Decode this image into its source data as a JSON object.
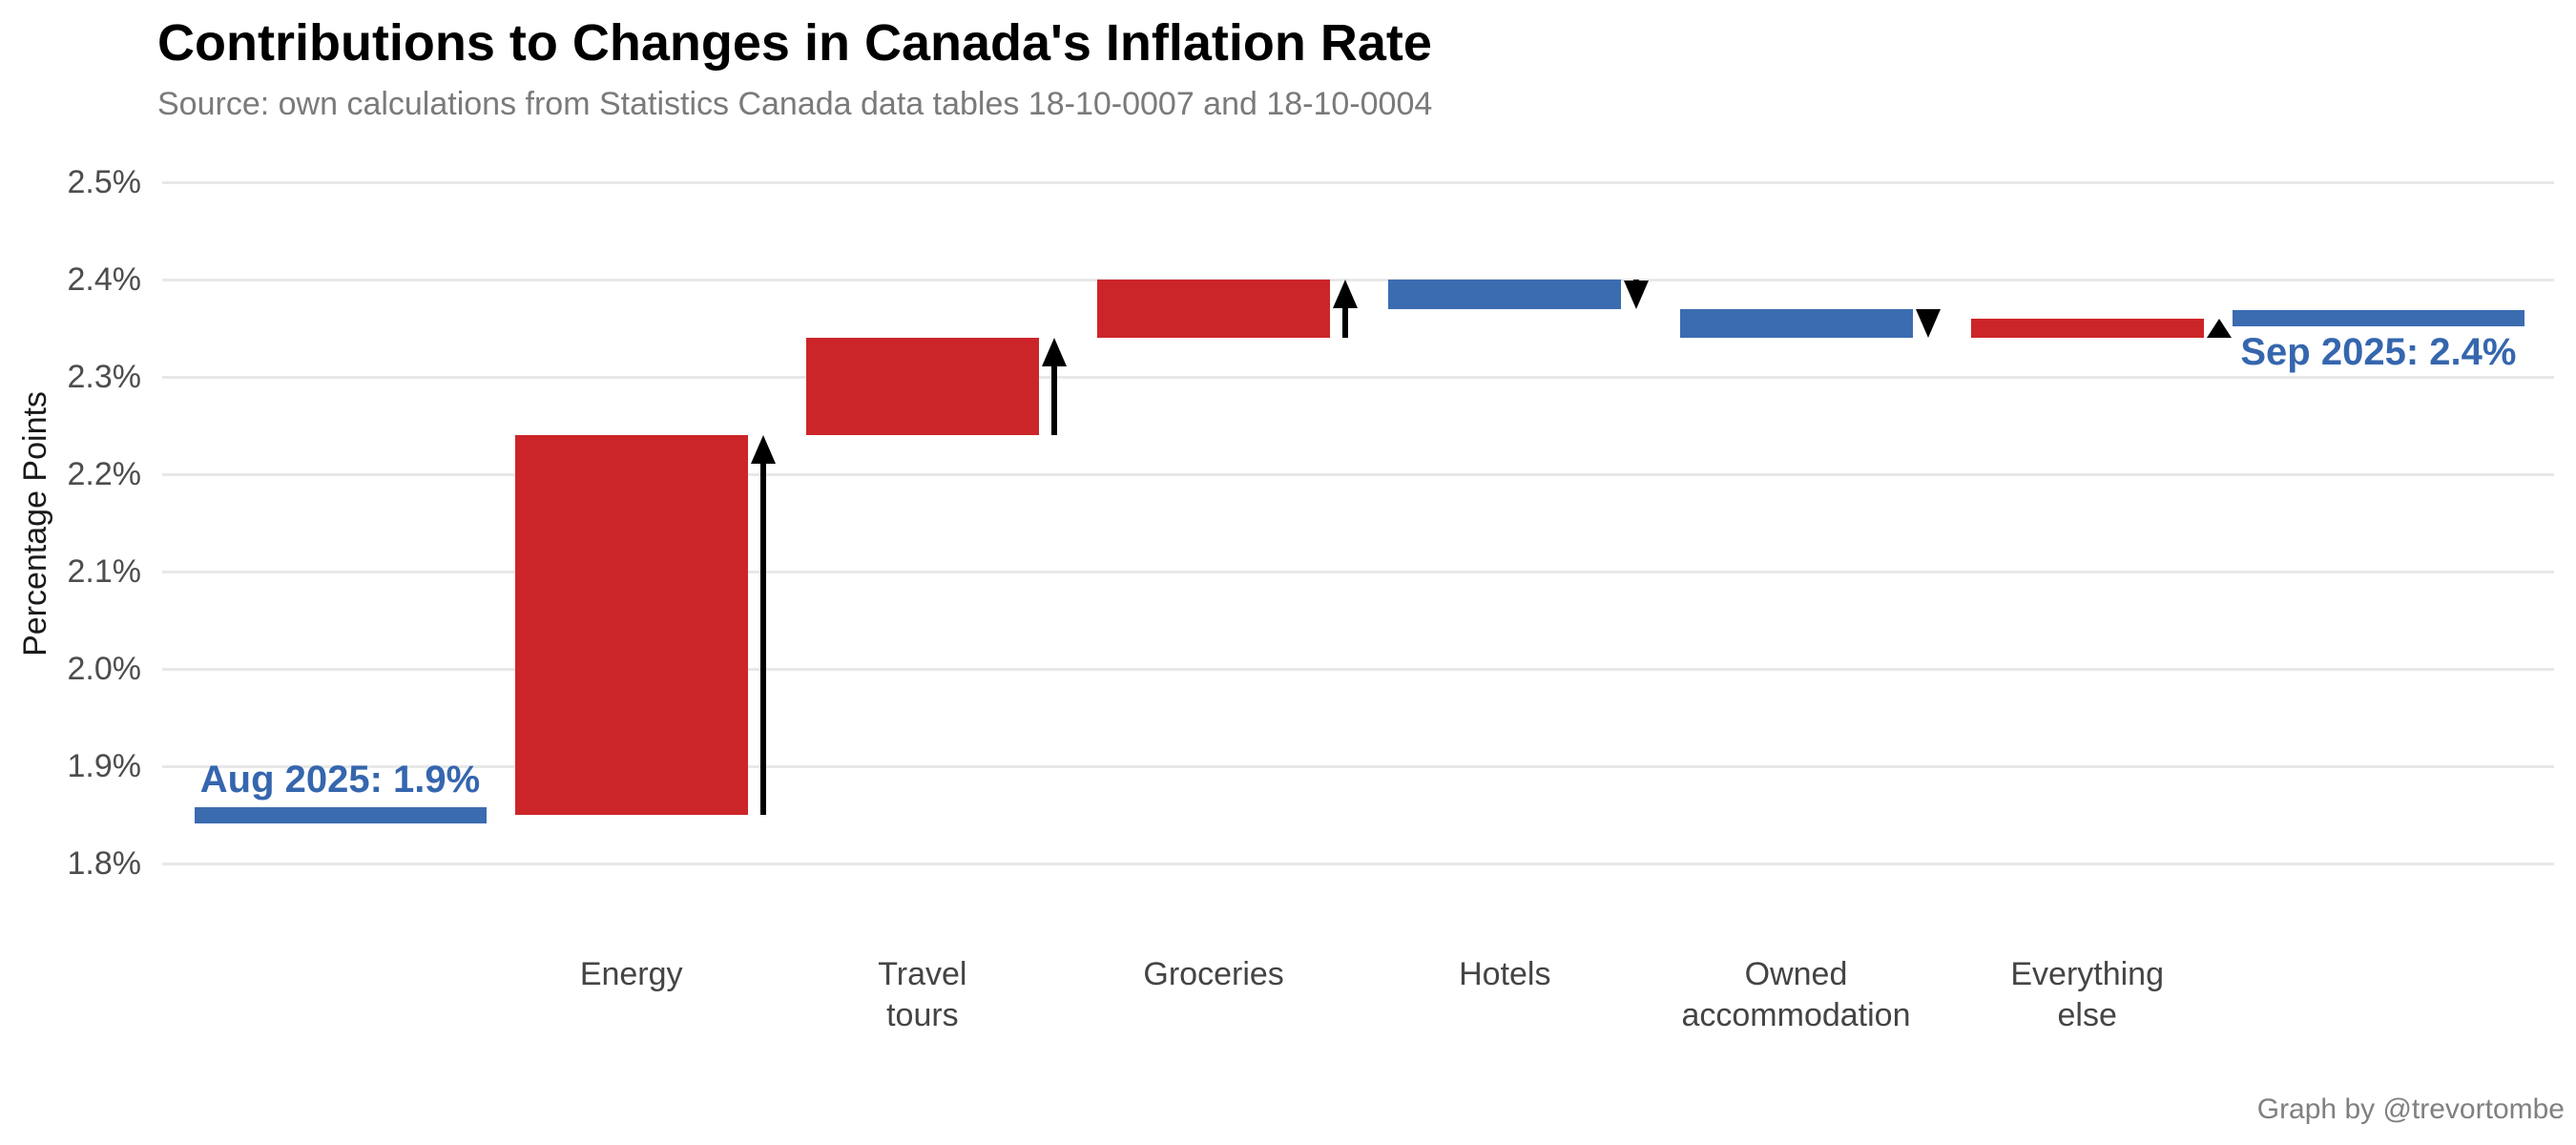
{
  "chart_data": {
    "type": "bar",
    "subtype": "waterfall",
    "title": "Contributions to Changes in Canada's Inflation Rate",
    "subtitle": "Source: own calculations from Statistics Canada data tables 18-10-0007 and 18-10-0004",
    "ylabel": "Percentage Points",
    "ylim": [
      1.8,
      2.5
    ],
    "grid": "horizontal-only",
    "legend": "none",
    "yticks": [
      {
        "value": 2.5,
        "label": "2.5%"
      },
      {
        "value": 2.4,
        "label": "2.4%"
      },
      {
        "value": 2.3,
        "label": "2.3%"
      },
      {
        "value": 2.2,
        "label": "2.2%"
      },
      {
        "value": 2.1,
        "label": "2.1%"
      },
      {
        "value": 2.0,
        "label": "2.0%"
      },
      {
        "value": 1.9,
        "label": "1.9%"
      },
      {
        "value": 1.8,
        "label": "1.8%"
      }
    ],
    "start": {
      "category": "Aug 2025",
      "value": 1.85,
      "annotation": "Aug 2025: 1.9%"
    },
    "end": {
      "category": "Sep 2025",
      "value": 2.36,
      "annotation": "Sep 2025: 2.4%"
    },
    "bars": [
      {
        "category": "Energy",
        "label": "Energy",
        "from": 1.85,
        "to": 2.24,
        "change": 0.39,
        "direction": "increase"
      },
      {
        "category": "Travel tours",
        "label": "Travel\ntours",
        "from": 2.24,
        "to": 2.34,
        "change": 0.1,
        "direction": "increase"
      },
      {
        "category": "Groceries",
        "label": "Groceries",
        "from": 2.34,
        "to": 2.4,
        "change": 0.06,
        "direction": "increase"
      },
      {
        "category": "Hotels",
        "label": "Hotels",
        "from": 2.4,
        "to": 2.37,
        "change": -0.03,
        "direction": "decrease"
      },
      {
        "category": "Owned accommodation",
        "label": "Owned\naccommodation",
        "from": 2.37,
        "to": 2.34,
        "change": -0.03,
        "direction": "decrease"
      },
      {
        "category": "Everything else",
        "label": "Everything\nelse",
        "from": 2.34,
        "to": 2.36,
        "change": 0.02,
        "direction": "increase"
      }
    ],
    "colors": {
      "increase": "#cc2529",
      "decrease": "#3b6cb0",
      "level_marker": "#3b6cb0",
      "annotation_text": "#3566ae",
      "arrow": "#000000",
      "gridline": "#e8e8e8",
      "background": "#ffffff"
    },
    "credit": "Graph by @trevortombe"
  }
}
